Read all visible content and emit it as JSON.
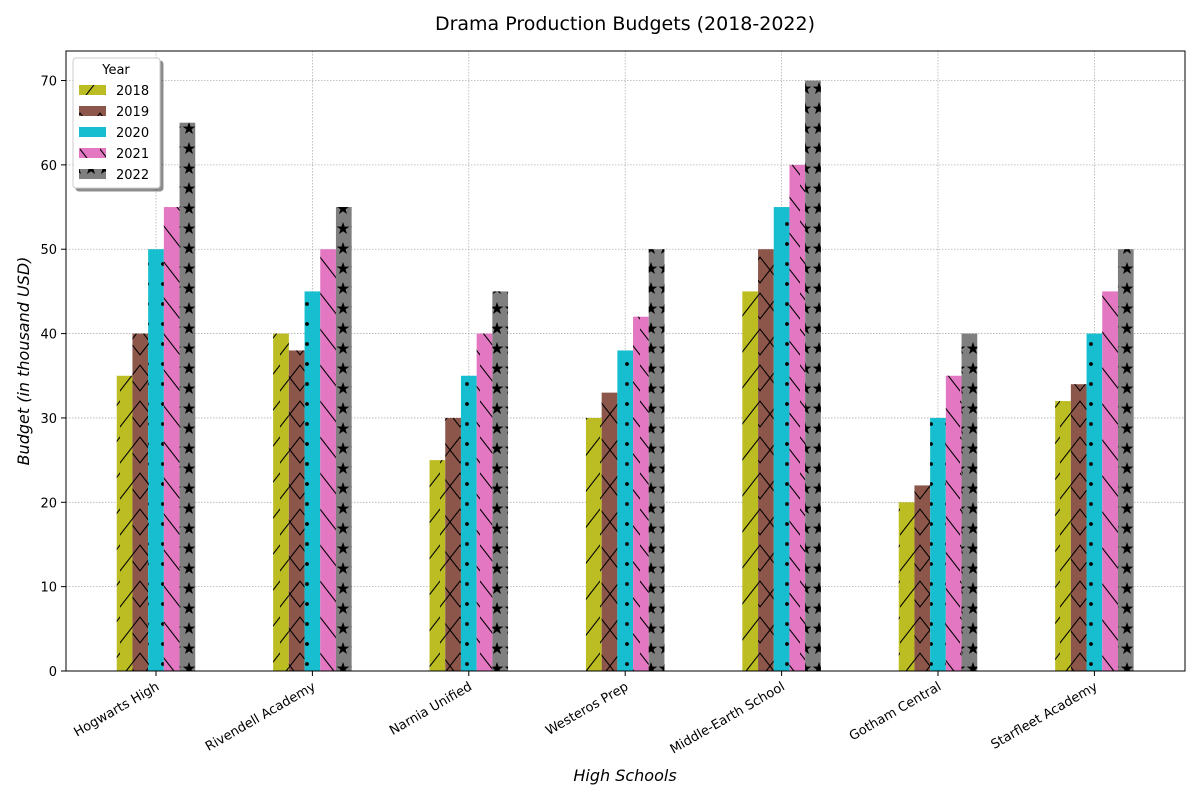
{
  "chart_data": {
    "type": "bar",
    "title": "Drama Production Budgets (2018-2022)",
    "xlabel": "High Schools",
    "ylabel": "Budget (in thousand USD)",
    "ylim": [
      0,
      73.5
    ],
    "yticks": [
      0,
      10,
      20,
      30,
      40,
      50,
      60,
      70
    ],
    "grid": true,
    "legend": {
      "title": "Year",
      "placement": "top-left"
    },
    "categories": [
      "Hogwarts High",
      "Rivendell Academy",
      "Narnia Unified",
      "Westeros Prep",
      "Middle-Earth School",
      "Gotham Central",
      "Starfleet Academy"
    ],
    "series": [
      {
        "name": "2018",
        "values": [
          35,
          40,
          25,
          30,
          45,
          20,
          32
        ],
        "color": "#bcbd22",
        "pattern": "slash"
      },
      {
        "name": "2019",
        "values": [
          40,
          38,
          30,
          33,
          50,
          22,
          34
        ],
        "color": "#8c564b",
        "pattern": "cross"
      },
      {
        "name": "2020",
        "values": [
          50,
          45,
          35,
          38,
          55,
          30,
          40
        ],
        "color": "#17becf",
        "pattern": "dots"
      },
      {
        "name": "2021",
        "values": [
          55,
          50,
          40,
          42,
          60,
          35,
          45
        ],
        "color": "#e377c2",
        "pattern": "backslash"
      },
      {
        "name": "2022",
        "values": [
          65,
          55,
          45,
          50,
          70,
          40,
          50
        ],
        "color": "#7f7f7f",
        "pattern": "stars"
      }
    ]
  }
}
